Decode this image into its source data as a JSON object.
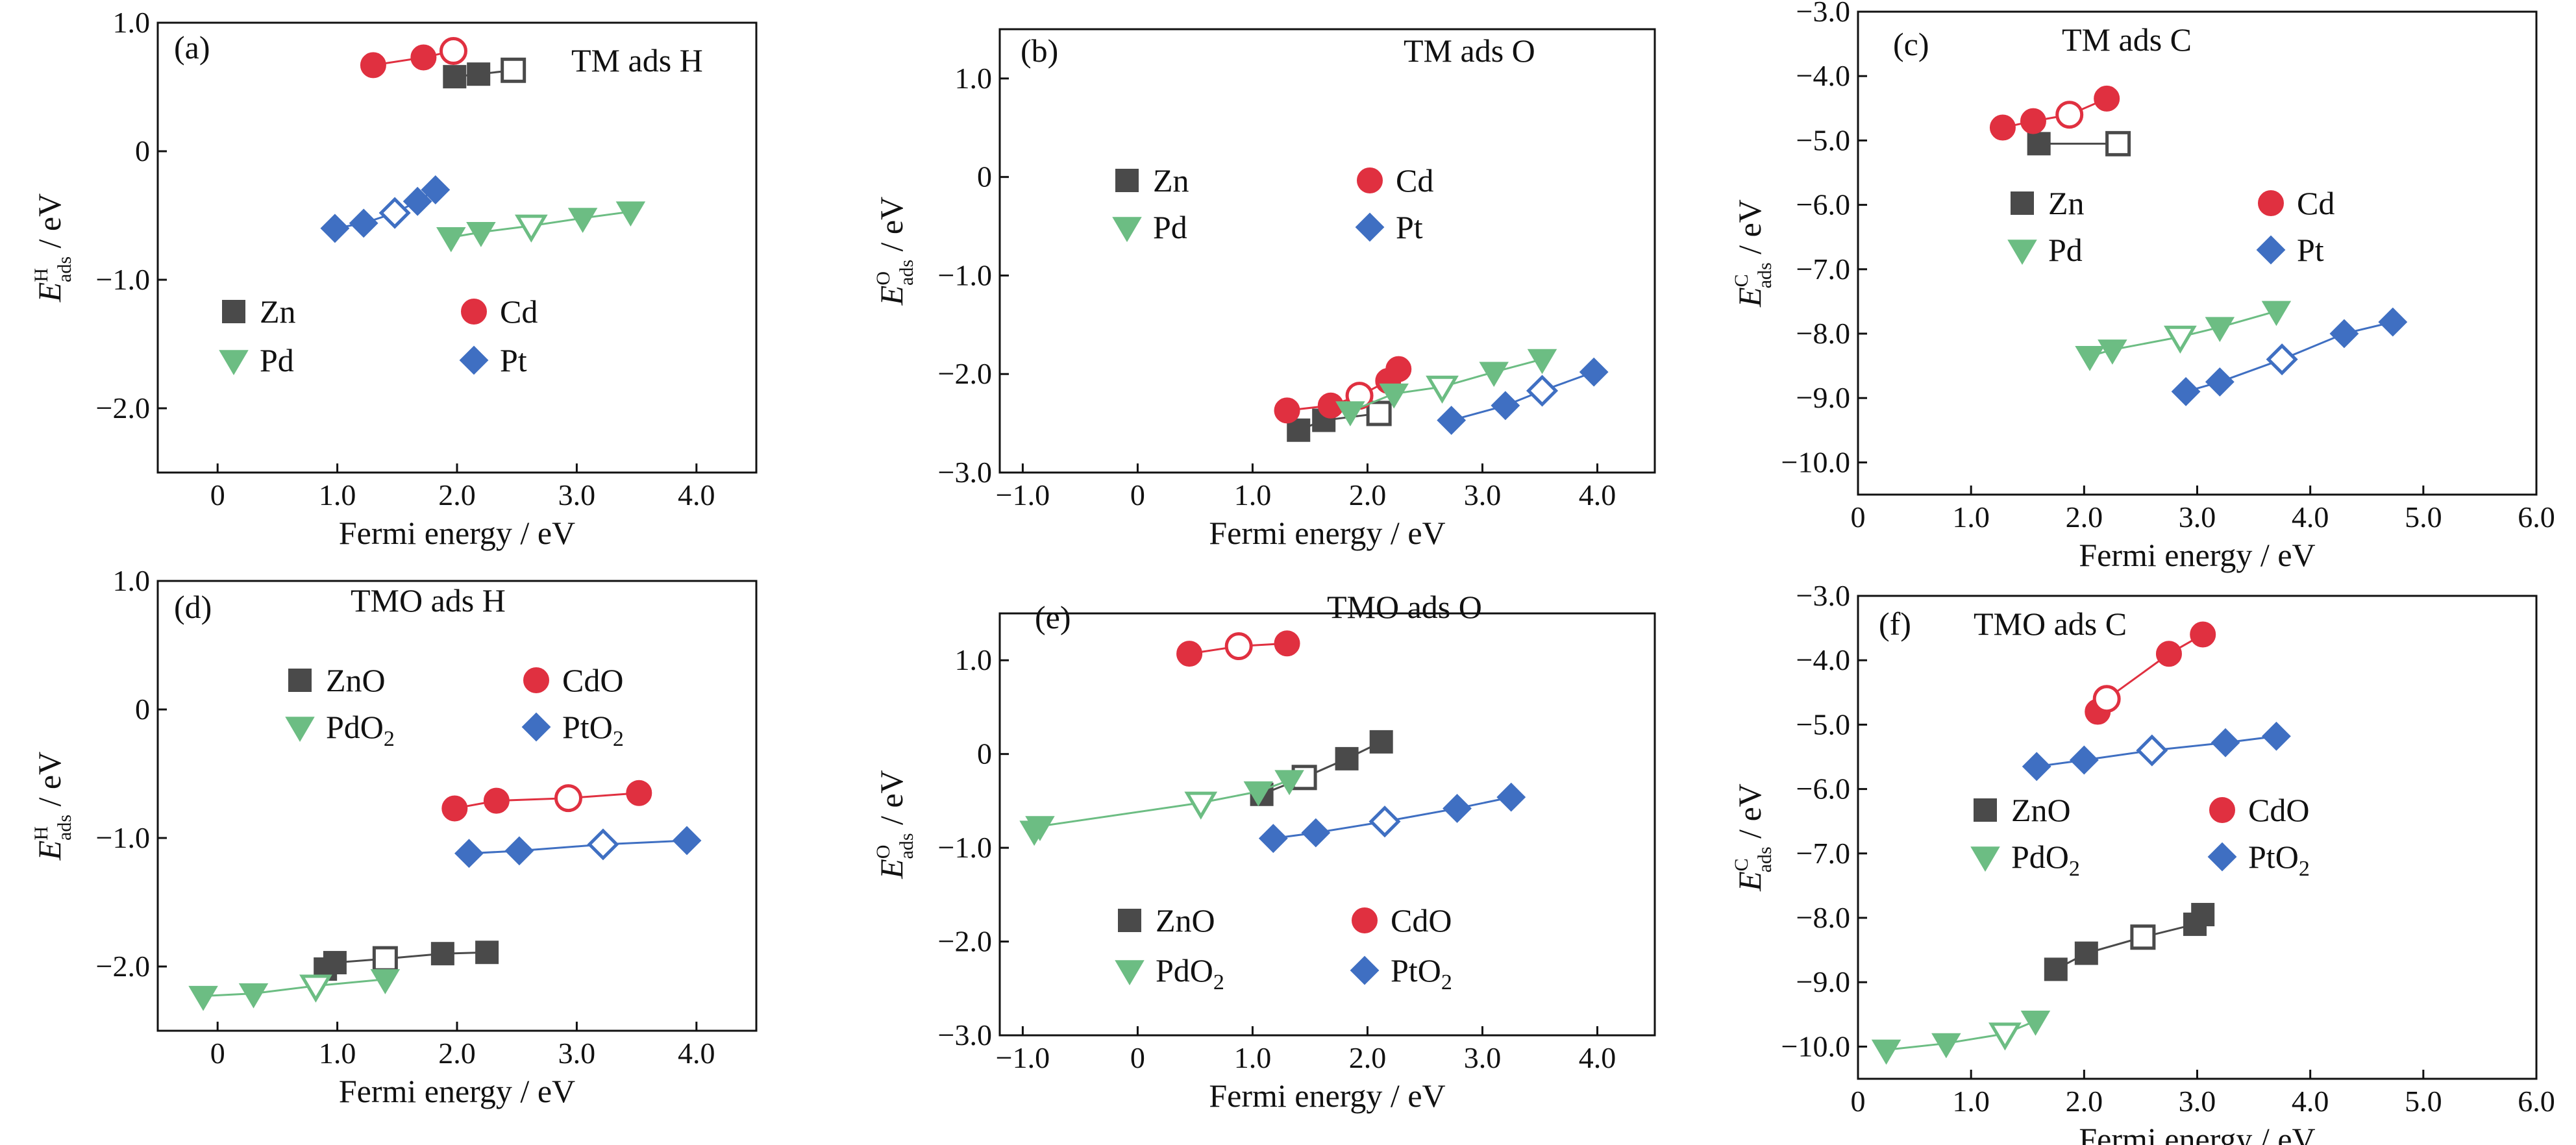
{
  "colors": {
    "zn": "#4a4a4a",
    "cd": "#e03040",
    "pd": "#6cbd83",
    "pt": "#3f6fc2",
    "axis": "#111111"
  },
  "chart_data": [
    {
      "id": "a",
      "type": "scatter",
      "panel_label": "(a)",
      "title": "TM ads H",
      "xlabel": "Fermi energy / eV",
      "ylabel_main": "E",
      "ylabel_sup": "H",
      "ylabel_sub": "ads",
      "ylabel_unit": " / eV",
      "xlim": [
        -0.5,
        4.5
      ],
      "ylim": [
        -2.5,
        1.0
      ],
      "xticks": [
        0,
        1.0,
        2.0,
        3.0,
        4.0
      ],
      "xtick_labels": [
        "0",
        "1.0",
        "2.0",
        "3.0",
        "4.0"
      ],
      "yticks": [
        1.0,
        0,
        -1.0,
        -2.0
      ],
      "ytick_labels": [
        "1.0",
        "0",
        "−1.0",
        "−2.0"
      ],
      "legend": [
        {
          "label": "Zn",
          "sub": "",
          "series": "Zn"
        },
        {
          "label": "Cd",
          "sub": "",
          "series": "Cd"
        },
        {
          "label": "Pd",
          "sub": "",
          "series": "Pd"
        },
        {
          "label": "Pt",
          "sub": "",
          "series": "Pt"
        }
      ],
      "series": [
        {
          "name": "Zn",
          "marker": "square",
          "color": "zn",
          "points": [
            [
              1.98,
              0.58
            ],
            [
              2.18,
              0.6
            ],
            [
              2.47,
              0.63
            ]
          ],
          "open": [
            2
          ]
        },
        {
          "name": "Cd",
          "marker": "circle",
          "color": "cd",
          "points": [
            [
              1.3,
              0.67
            ],
            [
              1.72,
              0.73
            ],
            [
              1.97,
              0.78
            ]
          ],
          "open": [
            2
          ]
        },
        {
          "name": "Pd",
          "marker": "triangle",
          "color": "pd",
          "points": [
            [
              1.95,
              -0.67
            ],
            [
              2.2,
              -0.63
            ],
            [
              2.62,
              -0.58
            ],
            [
              3.05,
              -0.52
            ],
            [
              3.45,
              -0.47
            ]
          ],
          "open": [
            2
          ]
        },
        {
          "name": "Pt",
          "marker": "diamond",
          "color": "pt",
          "points": [
            [
              0.98,
              -0.6
            ],
            [
              1.22,
              -0.56
            ],
            [
              1.48,
              -0.48
            ],
            [
              1.67,
              -0.39
            ],
            [
              1.82,
              -0.3
            ]
          ],
          "open": [
            2
          ]
        }
      ]
    },
    {
      "id": "b",
      "type": "scatter",
      "panel_label": "(b)",
      "title": "TM ads O",
      "xlabel": "Fermi energy / eV",
      "ylabel_main": "E",
      "ylabel_sup": "O",
      "ylabel_sub": "ads",
      "ylabel_unit": " / eV",
      "xlim": [
        -1.2,
        4.5
      ],
      "ylim": [
        -3.0,
        1.5
      ],
      "xticks": [
        -1.0,
        0,
        1.0,
        2.0,
        3.0,
        4.0
      ],
      "xtick_labels": [
        "−1.0",
        "0",
        "1.0",
        "2.0",
        "3.0",
        "4.0"
      ],
      "yticks": [
        1.0,
        0,
        -1.0,
        -2.0,
        -3.0
      ],
      "ytick_labels": [
        "1.0",
        "0",
        "−1.0",
        "−2.0",
        "−3.0"
      ],
      "legend": [
        {
          "label": "Zn",
          "sub": "",
          "series": "Zn"
        },
        {
          "label": "Cd",
          "sub": "",
          "series": "Cd"
        },
        {
          "label": "Pd",
          "sub": "",
          "series": "Pd"
        },
        {
          "label": "Pt",
          "sub": "",
          "series": "Pt"
        }
      ],
      "series": [
        {
          "name": "Zn",
          "marker": "square",
          "color": "zn",
          "points": [
            [
              1.4,
              -2.57
            ],
            [
              1.62,
              -2.47
            ],
            [
              2.1,
              -2.4
            ]
          ],
          "open": [
            2
          ]
        },
        {
          "name": "Cd",
          "marker": "circle",
          "color": "cd",
          "points": [
            [
              1.3,
              -2.37
            ],
            [
              1.68,
              -2.32
            ],
            [
              1.93,
              -2.22
            ],
            [
              2.18,
              -2.07
            ],
            [
              2.27,
              -1.95
            ]
          ],
          "open": [
            2
          ]
        },
        {
          "name": "Pd",
          "marker": "triangle",
          "color": "pd",
          "points": [
            [
              1.85,
              -2.38
            ],
            [
              2.23,
              -2.2
            ],
            [
              2.65,
              -2.13
            ],
            [
              3.1,
              -1.98
            ],
            [
              3.52,
              -1.85
            ]
          ],
          "open": [
            2
          ]
        },
        {
          "name": "Pt",
          "marker": "diamond",
          "color": "pt",
          "points": [
            [
              2.73,
              -2.47
            ],
            [
              3.2,
              -2.32
            ],
            [
              3.52,
              -2.17
            ],
            [
              3.97,
              -1.98
            ]
          ],
          "open": [
            2
          ]
        }
      ]
    },
    {
      "id": "c",
      "type": "scatter",
      "panel_label": "(c)",
      "title": "TM ads C",
      "xlabel": "Fermi energy / eV",
      "ylabel_main": "E",
      "ylabel_sup": "C",
      "ylabel_sub": "ads",
      "ylabel_unit": " / eV",
      "xlim": [
        0,
        6.0
      ],
      "ylim": [
        -10.5,
        -3.0
      ],
      "xticks": [
        0,
        1.0,
        2.0,
        3.0,
        4.0,
        5.0,
        6.0
      ],
      "xtick_labels": [
        "0",
        "1.0",
        "2.0",
        "3.0",
        "4.0",
        "5.0",
        "6.0"
      ],
      "yticks": [
        -3.0,
        -4.0,
        -5.0,
        -6.0,
        -7.0,
        -8.0,
        -9.0,
        -10.0
      ],
      "ytick_labels": [
        "−3.0",
        "−4.0",
        "−5.0",
        "−6.0",
        "−7.0",
        "−8.0",
        "−9.0",
        "−10.0"
      ],
      "legend": [
        {
          "label": "Zn",
          "sub": "",
          "series": "Zn"
        },
        {
          "label": "Cd",
          "sub": "",
          "series": "Cd"
        },
        {
          "label": "Pd",
          "sub": "",
          "series": "Pd"
        },
        {
          "label": "Pt",
          "sub": "",
          "series": "Pt"
        }
      ],
      "series": [
        {
          "name": "Zn",
          "marker": "square",
          "color": "zn",
          "points": [
            [
              1.6,
              -5.05
            ],
            [
              2.3,
              -5.05
            ]
          ],
          "open": [
            1
          ]
        },
        {
          "name": "Cd",
          "marker": "circle",
          "color": "cd",
          "points": [
            [
              1.28,
              -4.8
            ],
            [
              1.55,
              -4.7
            ],
            [
              1.87,
              -4.6
            ],
            [
              2.2,
              -4.35
            ]
          ],
          "open": [
            2
          ]
        },
        {
          "name": "Pd",
          "marker": "triangle",
          "color": "pd",
          "points": [
            [
              2.05,
              -8.35
            ],
            [
              2.25,
              -8.25
            ],
            [
              2.85,
              -8.05
            ],
            [
              3.2,
              -7.9
            ],
            [
              3.7,
              -7.65
            ]
          ],
          "open": [
            2
          ]
        },
        {
          "name": "Pt",
          "marker": "diamond",
          "color": "pt",
          "points": [
            [
              2.9,
              -8.9
            ],
            [
              3.2,
              -8.75
            ],
            [
              3.75,
              -8.4
            ],
            [
              4.3,
              -8.0
            ],
            [
              4.73,
              -7.82
            ]
          ],
          "open": [
            2
          ]
        }
      ]
    },
    {
      "id": "d",
      "type": "scatter",
      "panel_label": "(d)",
      "title": "TMO ads H",
      "xlabel": "Fermi energy / eV",
      "ylabel_main": "E",
      "ylabel_sup": "H",
      "ylabel_sub": "ads",
      "ylabel_unit": " / eV",
      "xlim": [
        -0.5,
        4.5
      ],
      "ylim": [
        -2.5,
        1.0
      ],
      "xticks": [
        0,
        1.0,
        2.0,
        3.0,
        4.0
      ],
      "xtick_labels": [
        "0",
        "1.0",
        "2.0",
        "3.0",
        "4.0"
      ],
      "yticks": [
        1.0,
        0,
        -1.0,
        -2.0
      ],
      "ytick_labels": [
        "1.0",
        "0",
        "−1.0",
        "−2.0"
      ],
      "legend": [
        {
          "label": "ZnO",
          "sub": "",
          "series": "ZnO"
        },
        {
          "label": "CdO",
          "sub": "",
          "series": "CdO"
        },
        {
          "label": "PdO",
          "sub": "2",
          "series": "PdO2"
        },
        {
          "label": "PtO",
          "sub": "2",
          "series": "PtO2"
        }
      ],
      "series": [
        {
          "name": "ZnO",
          "marker": "square",
          "color": "zn",
          "points": [
            [
              0.9,
              -2.02
            ],
            [
              0.98,
              -1.97
            ],
            [
              1.4,
              -1.94
            ],
            [
              1.88,
              -1.9
            ],
            [
              2.25,
              -1.89
            ]
          ],
          "open": [
            2
          ]
        },
        {
          "name": "CdO",
          "marker": "circle",
          "color": "cd",
          "points": [
            [
              1.98,
              -0.77
            ],
            [
              2.33,
              -0.71
            ],
            [
              2.93,
              -0.69
            ],
            [
              3.52,
              -0.65
            ]
          ],
          "open": [
            2
          ]
        },
        {
          "name": "PdO2",
          "marker": "triangle",
          "color": "pd",
          "points": [
            [
              -0.12,
              -2.23
            ],
            [
              0.3,
              -2.21
            ],
            [
              0.82,
              -2.15
            ],
            [
              1.4,
              -2.1
            ]
          ],
          "open": [
            2
          ]
        },
        {
          "name": "PtO2",
          "marker": "diamond",
          "color": "pt",
          "points": [
            [
              2.1,
              -1.12
            ],
            [
              2.52,
              -1.1
            ],
            [
              3.22,
              -1.05
            ],
            [
              3.92,
              -1.02
            ]
          ],
          "open": [
            2
          ]
        }
      ]
    },
    {
      "id": "e",
      "type": "scatter",
      "panel_label": "(e)",
      "title": "TMO ads O",
      "xlabel": "Fermi energy / eV",
      "ylabel_main": "E",
      "ylabel_sup": "O",
      "ylabel_sub": "ads",
      "ylabel_unit": " / eV",
      "xlim": [
        -1.2,
        4.5
      ],
      "ylim": [
        -3.0,
        1.5
      ],
      "xticks": [
        -1.0,
        0,
        1.0,
        2.0,
        3.0,
        4.0
      ],
      "xtick_labels": [
        "−1.0",
        "0",
        "1.0",
        "2.0",
        "3.0",
        "4.0"
      ],
      "yticks": [
        1.0,
        0,
        -1.0,
        -2.0,
        -3.0
      ],
      "ytick_labels": [
        "1.0",
        "0",
        "−1.0",
        "−2.0",
        "−3.0"
      ],
      "legend": [
        {
          "label": "ZnO",
          "sub": "",
          "series": "ZnO"
        },
        {
          "label": "CdO",
          "sub": "",
          "series": "CdO"
        },
        {
          "label": "PdO",
          "sub": "2",
          "series": "PdO2"
        },
        {
          "label": "PtO",
          "sub": "2",
          "series": "PtO2"
        }
      ],
      "series": [
        {
          "name": "ZnO",
          "marker": "square",
          "color": "zn",
          "points": [
            [
              1.08,
              -0.43
            ],
            [
              1.45,
              -0.25
            ],
            [
              1.82,
              -0.05
            ],
            [
              2.12,
              0.13
            ]
          ],
          "open": [
            1
          ]
        },
        {
          "name": "CdO",
          "marker": "circle",
          "color": "cd",
          "points": [
            [
              0.45,
              1.07
            ],
            [
              0.88,
              1.15
            ],
            [
              1.3,
              1.18
            ]
          ],
          "open": [
            1
          ]
        },
        {
          "name": "PdO2",
          "marker": "triangle",
          "color": "pd",
          "points": [
            [
              -0.9,
              -0.82
            ],
            [
              -0.85,
              -0.77
            ],
            [
              0.55,
              -0.52
            ],
            [
              1.05,
              -0.4
            ],
            [
              1.32,
              -0.28
            ]
          ],
          "open": [
            2
          ]
        },
        {
          "name": "PtO2",
          "marker": "diamond",
          "color": "pt",
          "points": [
            [
              1.18,
              -0.9
            ],
            [
              1.55,
              -0.84
            ],
            [
              2.15,
              -0.72
            ],
            [
              2.78,
              -0.58
            ],
            [
              3.25,
              -0.46
            ]
          ],
          "open": [
            2
          ]
        }
      ]
    },
    {
      "id": "f",
      "type": "scatter",
      "panel_label": "(f)",
      "title": "TMO ads C",
      "xlabel": "Fermi energy / eV",
      "ylabel_main": "E",
      "ylabel_sup": "C",
      "ylabel_sub": "ads",
      "ylabel_unit": " / eV",
      "xlim": [
        0,
        6.0
      ],
      "ylim": [
        -10.5,
        -3.0
      ],
      "xticks": [
        0,
        1.0,
        2.0,
        3.0,
        4.0,
        5.0,
        6.0
      ],
      "xtick_labels": [
        "0",
        "1.0",
        "2.0",
        "3.0",
        "4.0",
        "5.0",
        "6.0"
      ],
      "yticks": [
        -3.0,
        -4.0,
        -5.0,
        -6.0,
        -7.0,
        -8.0,
        -9.0,
        -10.0
      ],
      "ytick_labels": [
        "−3.0",
        "−4.0",
        "−5.0",
        "−6.0",
        "−7.0",
        "−8.0",
        "−9.0",
        "−10.0"
      ],
      "legend": [
        {
          "label": "ZnO",
          "sub": "",
          "series": "ZnO"
        },
        {
          "label": "CdO",
          "sub": "",
          "series": "CdO"
        },
        {
          "label": "PdO",
          "sub": "2",
          "series": "PdO2"
        },
        {
          "label": "PtO",
          "sub": "2",
          "series": "PtO2"
        }
      ],
      "series": [
        {
          "name": "ZnO",
          "marker": "square",
          "color": "zn",
          "points": [
            [
              1.75,
              -8.8
            ],
            [
              2.02,
              -8.55
            ],
            [
              2.52,
              -8.3
            ],
            [
              2.98,
              -8.1
            ],
            [
              3.05,
              -7.95
            ]
          ],
          "open": [
            2
          ]
        },
        {
          "name": "CdO",
          "marker": "circle",
          "color": "cd",
          "points": [
            [
              2.12,
              -4.8
            ],
            [
              2.2,
              -4.6
            ],
            [
              2.75,
              -3.9
            ],
            [
              3.05,
              -3.6
            ]
          ],
          "open": [
            1
          ]
        },
        {
          "name": "PdO2",
          "marker": "triangle",
          "color": "pd",
          "points": [
            [
              0.25,
              -10.05
            ],
            [
              0.78,
              -9.95
            ],
            [
              1.3,
              -9.8
            ],
            [
              1.57,
              -9.6
            ]
          ],
          "open": [
            2
          ]
        },
        {
          "name": "PtO2",
          "marker": "diamond",
          "color": "pt",
          "points": [
            [
              1.58,
              -5.65
            ],
            [
              2.0,
              -5.55
            ],
            [
              2.6,
              -5.4
            ],
            [
              3.25,
              -5.28
            ],
            [
              3.7,
              -5.18
            ]
          ],
          "open": [
            2
          ]
        }
      ]
    }
  ]
}
